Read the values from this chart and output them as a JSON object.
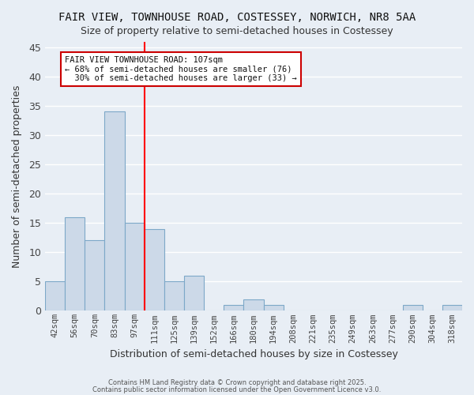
{
  "title": "FAIR VIEW, TOWNHOUSE ROAD, COSTESSEY, NORWICH, NR8 5AA",
  "subtitle": "Size of property relative to semi-detached houses in Costessey",
  "xlabel": "Distribution of semi-detached houses by size in Costessey",
  "ylabel": "Number of semi-detached properties",
  "bar_values": [
    5,
    16,
    12,
    34,
    15,
    14,
    5,
    6,
    0,
    1,
    2,
    1,
    0,
    0,
    0,
    0,
    0,
    0,
    1,
    0,
    1
  ],
  "x_labels": [
    "42sqm",
    "56sqm",
    "70sqm",
    "83sqm",
    "97sqm",
    "111sqm",
    "125sqm",
    "139sqm",
    "152sqm",
    "166sqm",
    "180sqm",
    "194sqm",
    "208sqm",
    "221sqm",
    "235sqm",
    "249sqm",
    "263sqm",
    "277sqm",
    "290sqm",
    "304sqm",
    "318sqm"
  ],
  "bar_color": "#ccd9e8",
  "bar_edge_color": "#7da8c8",
  "background_color": "#e8eef5",
  "grid_color": "#ffffff",
  "red_line_x": 4.5,
  "annotation_text": "FAIR VIEW TOWNHOUSE ROAD: 107sqm\n← 68% of semi-detached houses are smaller (76)\n  30% of semi-detached houses are larger (33) →",
  "annotation_box_color": "#ffffff",
  "annotation_box_edge_color": "#cc0000",
  "ylim": [
    0,
    46
  ],
  "yticks": [
    0,
    5,
    10,
    15,
    20,
    25,
    30,
    35,
    40,
    45
  ],
  "footer_line1": "Contains HM Land Registry data © Crown copyright and database right 2025.",
  "footer_line2": "Contains public sector information licensed under the Open Government Licence v3.0."
}
